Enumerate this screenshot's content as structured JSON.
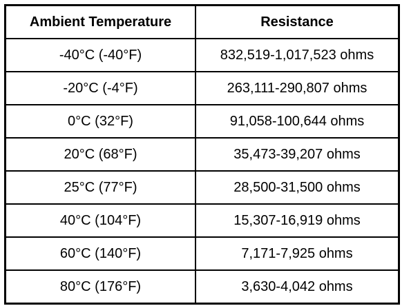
{
  "table": {
    "header": [
      "Ambient Temperature",
      "Resistance"
    ],
    "rows": [
      [
        "-40°C (-40°F)",
        "832,519-1,017,523 ohms"
      ],
      [
        "-20°C (-4°F)",
        "263,111-290,807 ohms"
      ],
      [
        "0°C (32°F)",
        "91,058-100,644 ohms"
      ],
      [
        "20°C (68°F)",
        "35,473-39,207 ohms"
      ],
      [
        "25°C (77°F)",
        "28,500-31,500 ohms"
      ],
      [
        "40°C (104°F)",
        "15,307-16,919 ohms"
      ],
      [
        "60°C (140°F)",
        "7,171-7,925 ohms"
      ],
      [
        "80°C (176°F)",
        "3,630-4,042 ohms"
      ]
    ]
  }
}
